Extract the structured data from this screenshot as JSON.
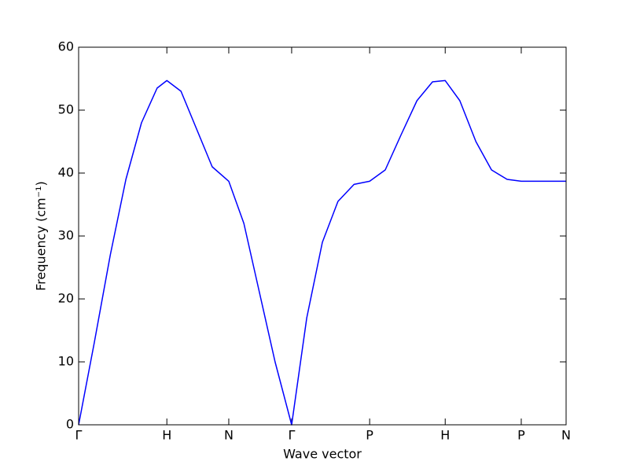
{
  "chart_data": {
    "type": "line",
    "xlabel": "Wave vector",
    "ylabel": "Frequency (cm⁻¹)",
    "x": [
      0,
      0.032,
      0.065,
      0.097,
      0.129,
      0.161,
      0.181,
      0.21,
      0.242,
      0.274,
      0.308,
      0.339,
      0.371,
      0.403,
      0.437,
      0.468,
      0.5,
      0.532,
      0.565,
      0.597,
      0.629,
      0.661,
      0.694,
      0.726,
      0.752,
      0.782,
      0.815,
      0.847,
      0.879,
      0.908,
      1
    ],
    "values": [
      0,
      13,
      27,
      39,
      48,
      53.5,
      54.7,
      53,
      47,
      41,
      38.7,
      32,
      21,
      10,
      0,
      17,
      29,
      35.5,
      38.2,
      38.7,
      40.5,
      46,
      51.5,
      54.5,
      54.7,
      51.5,
      45,
      40.5,
      39,
      38.7,
      38.7
    ],
    "color": "#0000ff",
    "xlim": [
      0,
      1
    ],
    "xticks": [
      {
        "value": 0,
        "label": "Γ"
      },
      {
        "value": 0.181,
        "label": "H"
      },
      {
        "value": 0.308,
        "label": "N"
      },
      {
        "value": 0.437,
        "label": "Γ"
      },
      {
        "value": 0.597,
        "label": "P"
      },
      {
        "value": 0.752,
        "label": "H"
      },
      {
        "value": 0.908,
        "label": "P"
      },
      {
        "value": 1,
        "label": "N"
      }
    ],
    "ylim": [
      0,
      60
    ],
    "yticks": [
      0,
      10,
      20,
      30,
      40,
      50,
      60
    ]
  }
}
